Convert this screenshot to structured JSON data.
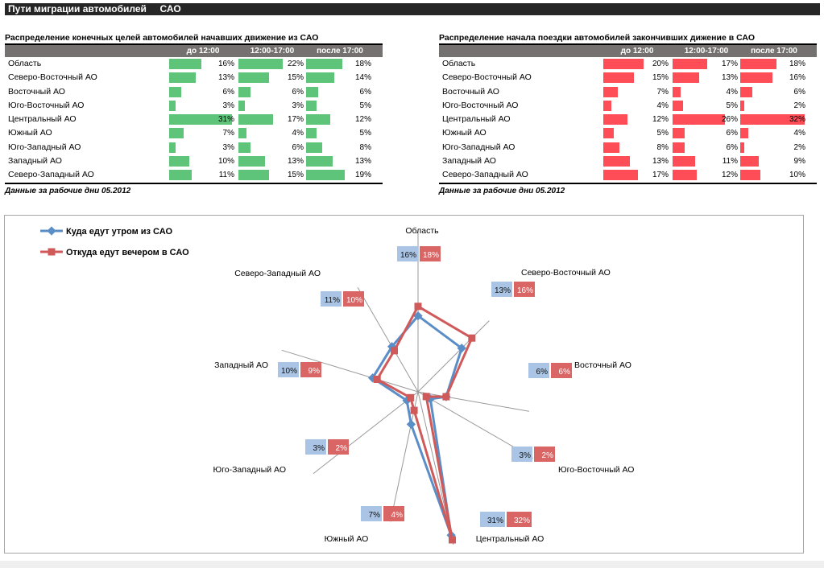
{
  "header": {
    "title": "Пути миграции автомобилей     САО"
  },
  "tables": [
    {
      "title": "Распределение конечных целей автомобилей начавших движение из САО",
      "columns": [
        "до 12:00",
        "12:00-17:00",
        "после 17:00"
      ],
      "bar_color": "#5ec47a",
      "rows": [
        {
          "label": "Область",
          "values": [
            "16%",
            "22%",
            "18%"
          ]
        },
        {
          "label": "Северо-Восточный АО",
          "values": [
            "13%",
            "15%",
            "14%"
          ]
        },
        {
          "label": "Восточный АО",
          "values": [
            "6%",
            "6%",
            "6%"
          ]
        },
        {
          "label": "Юго-Восточный АО",
          "values": [
            "3%",
            "3%",
            "5%"
          ]
        },
        {
          "label": "Центральный АО",
          "values": [
            "31%",
            "17%",
            "12%"
          ]
        },
        {
          "label": "Южный АО",
          "values": [
            "7%",
            "4%",
            "5%"
          ]
        },
        {
          "label": "Юго-Западный АО",
          "values": [
            "3%",
            "6%",
            "8%"
          ]
        },
        {
          "label": "Западный АО",
          "values": [
            "10%",
            "13%",
            "13%"
          ]
        },
        {
          "label": "Северо-Западный АО",
          "values": [
            "11%",
            "15%",
            "19%"
          ]
        }
      ],
      "note": "Данные за рабочие дни 05.2012"
    },
    {
      "title": "Распределение начала поездки автомобилей закончивших дижение в САО",
      "columns": [
        "до 12:00",
        "12:00-17:00",
        "после 17:00"
      ],
      "bar_color": "#ff4d57",
      "rows": [
        {
          "label": "Область",
          "values": [
            "20%",
            "17%",
            "18%"
          ]
        },
        {
          "label": "Северо-Восточный АО",
          "values": [
            "15%",
            "13%",
            "16%"
          ]
        },
        {
          "label": "Восточный АО",
          "values": [
            "7%",
            "4%",
            "6%"
          ]
        },
        {
          "label": "Юго-Восточный АО",
          "values": [
            "4%",
            "5%",
            "2%"
          ]
        },
        {
          "label": "Центральный АО",
          "values": [
            "12%",
            "26%",
            "32%"
          ]
        },
        {
          "label": "Южный АО",
          "values": [
            "5%",
            "6%",
            "4%"
          ]
        },
        {
          "label": "Юго-Западный АО",
          "values": [
            "8%",
            "6%",
            "2%"
          ]
        },
        {
          "label": "Западный АО",
          "values": [
            "13%",
            "11%",
            "9%"
          ]
        },
        {
          "label": "Северо-Западный АО",
          "values": [
            "17%",
            "12%",
            "10%"
          ]
        }
      ],
      "note": "Данные за рабочие дни 05.2012"
    }
  ],
  "chart_data": {
    "type": "radar",
    "categories": [
      "Область",
      "Северо-Восточный АО",
      "Восточный АО",
      "Юго-Восточный АО",
      "Центральный АО",
      "Южный АО",
      "Юго-Западный АО",
      "Западный АО",
      "Северо-Западный АО"
    ],
    "series": [
      {
        "name": "Куда едут утром из  САО",
        "color": "#5b8ec7",
        "label_bg": "#a9c4e4",
        "values": [
          16,
          13,
          6,
          3,
          31,
          7,
          3,
          10,
          11
        ],
        "labels": [
          "16%",
          "13%",
          "6%",
          "3%",
          "31%",
          "7%",
          "3%",
          "10%",
          "11%"
        ]
      },
      {
        "name": "Откуда едут вечером в  САО",
        "color": "#d05a5a",
        "label_bg": "#d96565",
        "values": [
          18,
          16,
          6,
          2,
          32,
          4,
          2,
          9,
          10
        ],
        "labels": [
          "18%",
          "16%",
          "6%",
          "2%",
          "32%",
          "4%",
          "2%",
          "9%",
          "10%"
        ]
      }
    ]
  }
}
